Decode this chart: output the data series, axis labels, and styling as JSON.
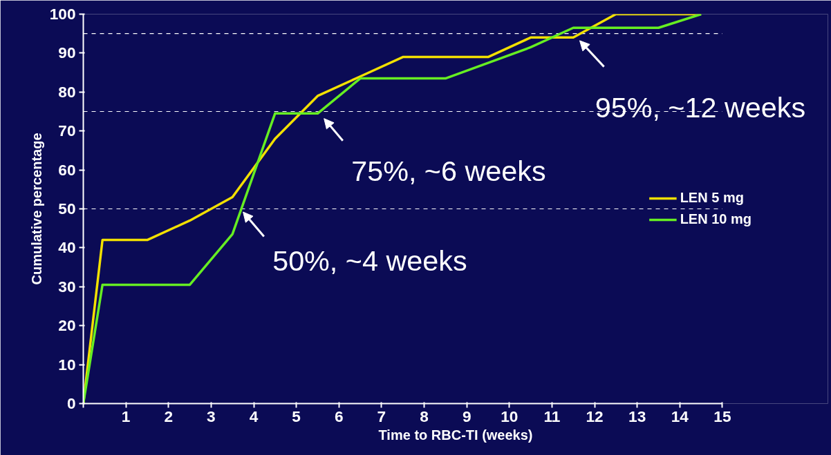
{
  "chart_data": {
    "type": "line",
    "xlabel": "Time to RBC-TI (weeks)",
    "ylabel": "Cumulative percentage",
    "series": [
      {
        "name": "LEN 5 mg",
        "color": "#f2e000",
        "x": [
          0,
          0.45,
          1.5,
          2.5,
          3.5,
          4.5,
          5.5,
          6.5,
          7.5,
          9.5,
          10.5,
          11.5,
          12.5,
          14.5
        ],
        "values": [
          0,
          42,
          42,
          47,
          53,
          68,
          79,
          84,
          89,
          89,
          94,
          94,
          100,
          100
        ]
      },
      {
        "name": "LEN 10 mg",
        "color": "#66ee22",
        "x": [
          0,
          0.45,
          2.5,
          3.5,
          4.5,
          5.5,
          6.5,
          8.5,
          10.5,
          11.5,
          13.5,
          14.5
        ],
        "values": [
          0,
          30.5,
          30.5,
          43.5,
          74.5,
          74.5,
          83.5,
          83.5,
          91.5,
          96.5,
          96.5,
          100
        ]
      }
    ],
    "xlim": [
      0,
      15
    ],
    "ylim": [
      0,
      100
    ],
    "xticks": [
      {
        "value": 0,
        "label": null
      },
      1,
      2,
      3,
      4,
      5,
      6,
      7,
      8,
      9,
      10,
      11,
      12,
      13,
      14,
      15
    ],
    "yticks": [
      0,
      10,
      20,
      30,
      40,
      50,
      60,
      70,
      80,
      90,
      100
    ],
    "ref_lines": [
      {
        "axis": "y",
        "value": 50,
        "color": "#ffffff",
        "line_style": "dashed"
      },
      {
        "axis": "y",
        "value": 75,
        "color": "#ffffff",
        "line_style": "dashed"
      },
      {
        "axis": "y",
        "value": 95,
        "color": "#ffffff",
        "line_style": "dashed"
      }
    ],
    "annotations": [
      {
        "text": "50%, ~4 weeks",
        "x": 3.7,
        "y": 50
      },
      {
        "text": "75%, ~6 weeks",
        "x": 5.6,
        "y": 74
      },
      {
        "text": "95%, ~12 weeks",
        "x": 11.6,
        "y": 94
      }
    ],
    "grid": false,
    "legend": "right",
    "marker": "none",
    "line_style": "solid"
  }
}
